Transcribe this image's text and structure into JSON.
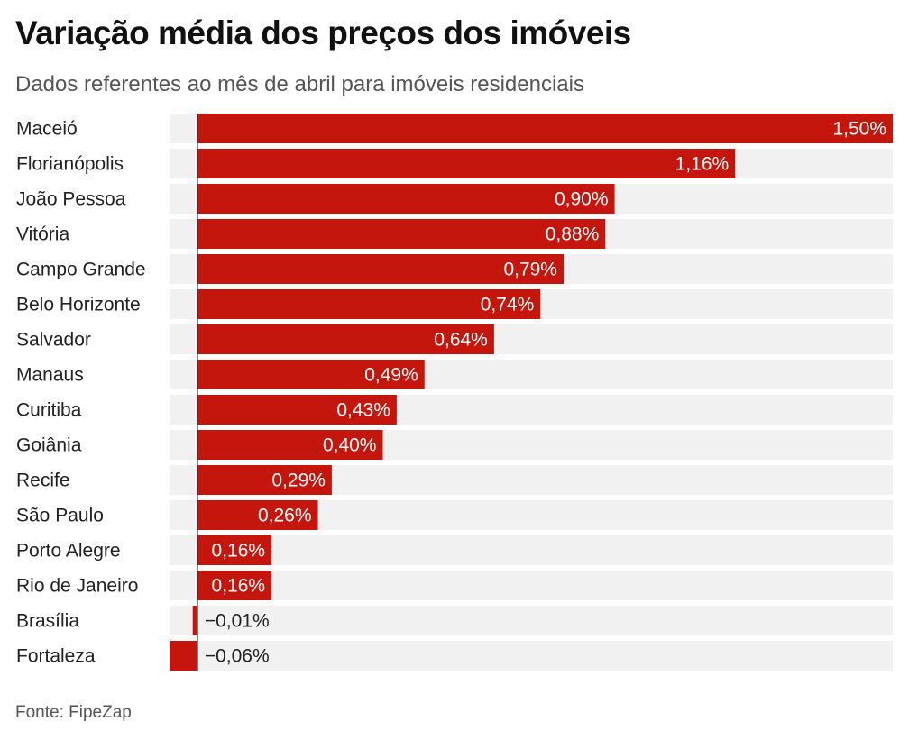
{
  "title": "Variação média dos preços dos imóveis",
  "subtitle": "Dados referentes ao mês de abril para imóveis residenciais",
  "source": "Fonte: FipeZap",
  "colors": {
    "bar": "#c4160c",
    "track": "#f1f1f1",
    "axis": "#333333",
    "label_inside": "#ffffff",
    "label_outside": "#222222"
  },
  "chart_data": {
    "type": "bar",
    "orientation": "horizontal",
    "title": "Variação média dos preços dos imóveis",
    "subtitle": "Dados referentes ao mês de abril para imóveis residenciais",
    "unit": "%",
    "xlim": [
      -0.06,
      1.5
    ],
    "categories": [
      "Maceió",
      "Florianópolis",
      "João Pessoa",
      "Vitória",
      "Campo Grande",
      "Belo Horizonte",
      "Salvador",
      "Manaus",
      "Curitiba",
      "Goiânia",
      "Recife",
      "São Paulo",
      "Porto Alegre",
      "Rio de Janeiro",
      "Brasília",
      "Fortaleza"
    ],
    "values": [
      1.5,
      1.16,
      0.9,
      0.88,
      0.79,
      0.74,
      0.64,
      0.49,
      0.43,
      0.4,
      0.29,
      0.26,
      0.16,
      0.16,
      -0.01,
      -0.06
    ],
    "labels": [
      "1,50%",
      "1,16%",
      "0,90%",
      "0,88%",
      "0,79%",
      "0,74%",
      "0,64%",
      "0,49%",
      "0,43%",
      "0,40%",
      "0,29%",
      "0,26%",
      "0,16%",
      "0,16%",
      "−0,01%",
      "−0,06%"
    ]
  }
}
